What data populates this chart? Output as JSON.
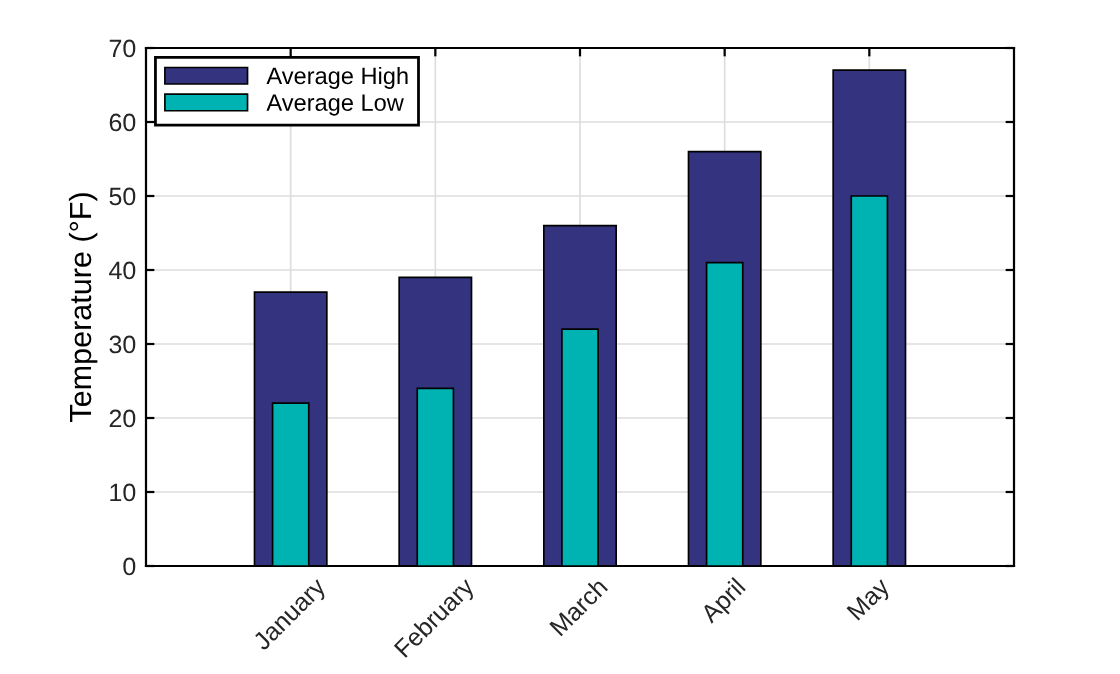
{
  "chart_data": {
    "type": "bar",
    "ylabel": "Temperature (°F)",
    "categories": [
      "January",
      "February",
      "March",
      "April",
      "May"
    ],
    "series": [
      {
        "name": "Average High",
        "color": "#333380",
        "values": [
          37,
          39,
          46,
          56,
          67
        ]
      },
      {
        "name": "Average Low",
        "color": "#00b3b3",
        "values": [
          22,
          24,
          32,
          41,
          50
        ]
      }
    ],
    "ylim": [
      0,
      70
    ],
    "yticks": [
      0,
      10,
      20,
      30,
      40,
      50,
      60,
      70
    ],
    "grid": true,
    "legend": "top left"
  }
}
